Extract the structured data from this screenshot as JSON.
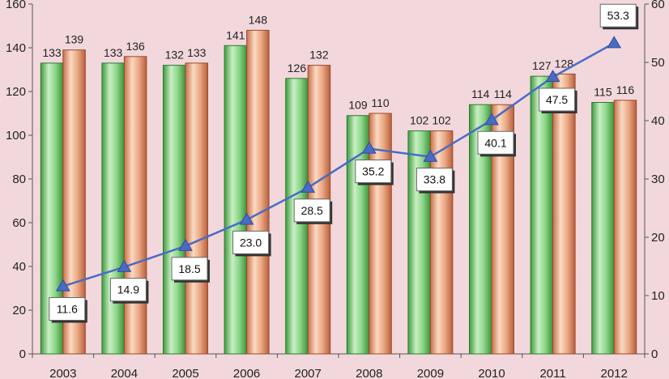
{
  "chart_data": {
    "type": "bar",
    "categories": [
      "2003",
      "2004",
      "2005",
      "2006",
      "2007",
      "2008",
      "2009",
      "2010",
      "2011",
      "2012"
    ],
    "series": [
      {
        "type": "bar",
        "axis": "left",
        "color": "#5db85d",
        "values": [
          133,
          133,
          132,
          141,
          126,
          109,
          102,
          114,
          127,
          115
        ]
      },
      {
        "type": "bar",
        "axis": "left",
        "color": "#e0906a",
        "values": [
          139,
          136,
          133,
          148,
          132,
          110,
          102,
          114,
          128,
          116
        ]
      },
      {
        "type": "line",
        "axis": "right",
        "color": "#4a6bc4",
        "marker": "triangle",
        "values": [
          11.6,
          14.9,
          18.5,
          23.0,
          28.5,
          35.2,
          33.8,
          40.1,
          47.5,
          53.3
        ],
        "labels": [
          "11.6",
          "14.9",
          "18.5",
          "23.0",
          "28.5",
          "35.2",
          "33.8",
          "40.1",
          "47.5",
          "53.3"
        ]
      }
    ],
    "y_left": {
      "min": 0,
      "max": 160,
      "step": 20,
      "ticks": [
        "0",
        "20",
        "40",
        "60",
        "80",
        "100",
        "120",
        "140",
        "160"
      ]
    },
    "y_right": {
      "min": 0,
      "max": 60,
      "step": 10,
      "ticks": [
        "0",
        "10",
        "20",
        "30",
        "40",
        "50",
        "60"
      ]
    },
    "title": "",
    "xlabel": "",
    "ylabel": "",
    "grid": false,
    "legend": "none"
  }
}
